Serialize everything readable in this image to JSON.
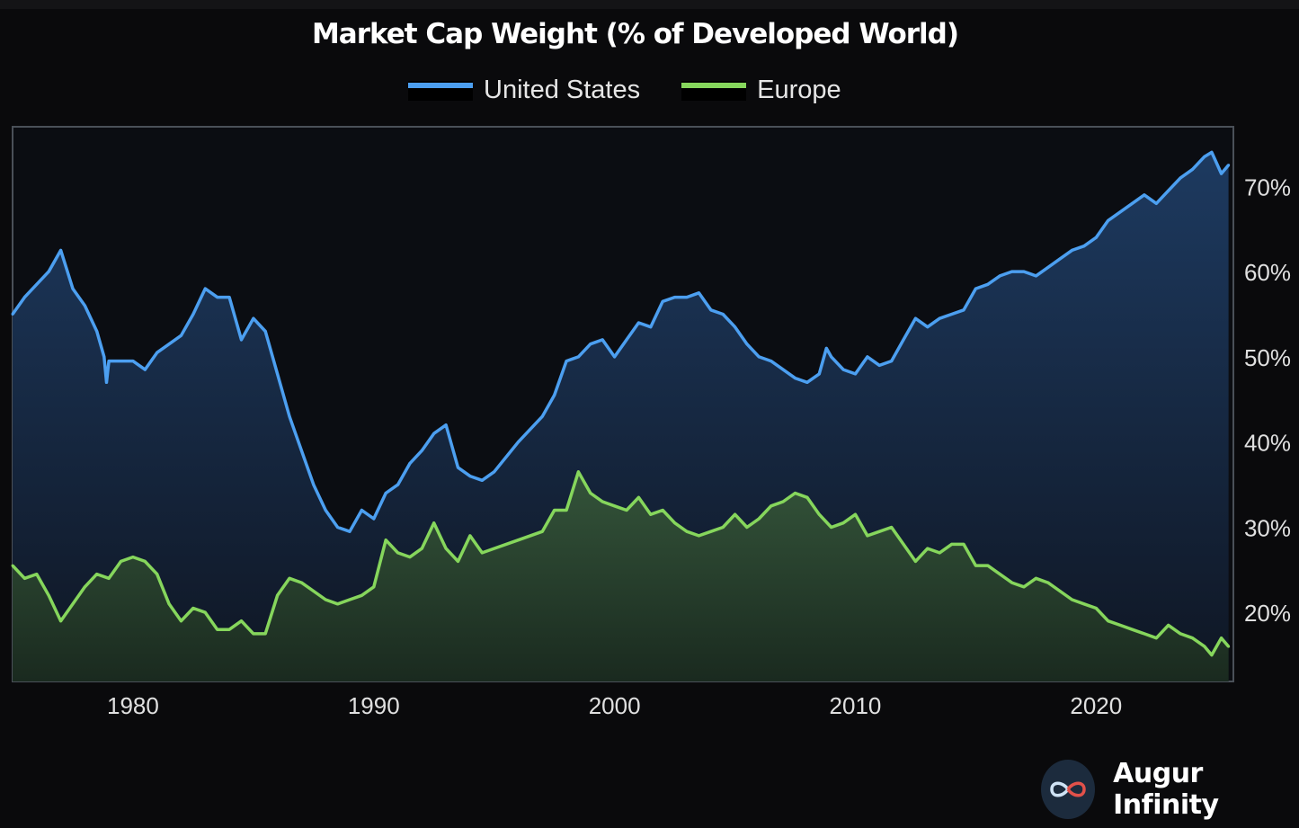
{
  "chart_data": {
    "type": "area",
    "title": "Market Cap Weight (% of Developed World)",
    "xlabel": "",
    "ylabel": "",
    "xlim": [
      1975,
      2025.7
    ],
    "ylim": [
      11.9,
      77
    ],
    "x_ticks": [
      "1980",
      "1990",
      "2000",
      "2010",
      "2020"
    ],
    "y_ticks": [
      "20%",
      "30%",
      "40%",
      "50%",
      "60%",
      "70%"
    ],
    "y_axis_side": "right",
    "grid": false,
    "legend_position": "top-center",
    "series": [
      {
        "name": "United States",
        "color": "#4c9ff0",
        "x": [
          1975,
          1975.5,
          1976.5,
          1977,
          1977.5,
          1978,
          1978.5,
          1978.8,
          1978.9,
          1979,
          1980,
          1980.5,
          1981,
          1982,
          1982.5,
          1983,
          1983.5,
          1984,
          1984.5,
          1985,
          1985.5,
          1986,
          1986.5,
          1987,
          1987.5,
          1988,
          1988.5,
          1989,
          1989.5,
          1990,
          1990.5,
          1991,
          1991.5,
          1992,
          1992.5,
          1993,
          1993.5,
          1994,
          1994.5,
          1995,
          1996,
          1997,
          1997.5,
          1998,
          1998.5,
          1999,
          1999.5,
          2000,
          2000.5,
          2001,
          2001.5,
          2002,
          2002.5,
          2003,
          2003.5,
          2004,
          2004.5,
          2005,
          2005.5,
          2006,
          2006.5,
          2007,
          2007.5,
          2008,
          2008.5,
          2008.8,
          2009,
          2009.5,
          2010,
          2010.5,
          2011,
          2011.5,
          2012,
          2012.5,
          2013,
          2013.5,
          2014,
          2014.5,
          2015,
          2015.5,
          2016,
          2016.5,
          2017,
          2017.5,
          2018,
          2018.5,
          2019,
          2019.5,
          2020,
          2020.5,
          2021,
          2021.5,
          2022,
          2022.5,
          2023,
          2023.5,
          2024,
          2024.5,
          2024.8,
          2025.2,
          2025.5
        ],
        "values": [
          55,
          57,
          60,
          62.5,
          58,
          56,
          53,
          50,
          47,
          49.5,
          49.5,
          48.5,
          50.5,
          52.5,
          55,
          58,
          57,
          57,
          52,
          54.5,
          53,
          48,
          43,
          39,
          35,
          32,
          30,
          29.5,
          32,
          31,
          34,
          35,
          37.5,
          39,
          41,
          42,
          37,
          36,
          35.5,
          36.5,
          40,
          43,
          45.5,
          49.5,
          50,
          51.5,
          52,
          50,
          52,
          54,
          53.5,
          56.5,
          57,
          57,
          57.5,
          55.5,
          55,
          53.5,
          51.5,
          50,
          49.5,
          48.5,
          47.5,
          47,
          48,
          51,
          50,
          48.5,
          48,
          50,
          49,
          49.5,
          52,
          54.5,
          53.5,
          54.5,
          55,
          55.5,
          58,
          58.5,
          59.5,
          60,
          60,
          59.5,
          60.5,
          61.5,
          62.5,
          63,
          64,
          66,
          67,
          68,
          69,
          68,
          69.5,
          71,
          72,
          73.5,
          74,
          71.5,
          72.5
        ]
      },
      {
        "name": "Europe",
        "color": "#86d65c",
        "x": [
          1975,
          1975.5,
          1976,
          1976.5,
          1977,
          1977.5,
          1978,
          1978.5,
          1979,
          1979.5,
          1980,
          1980.5,
          1981,
          1981.5,
          1982,
          1982.5,
          1983,
          1983.5,
          1984,
          1984.5,
          1985,
          1985.5,
          1986,
          1986.5,
          1987,
          1987.5,
          1988,
          1988.5,
          1989,
          1989.5,
          1990,
          1990.5,
          1991,
          1991.5,
          1992,
          1992.5,
          1993,
          1993.5,
          1994,
          1994.5,
          1995,
          1996,
          1997,
          1997.5,
          1998,
          1998.5,
          1999,
          1999.5,
          2000,
          2000.5,
          2001,
          2001.5,
          2002,
          2002.5,
          2003,
          2003.5,
          2004,
          2004.5,
          2005,
          2005.5,
          2006,
          2006.5,
          2007,
          2007.5,
          2008,
          2008.5,
          2009,
          2009.5,
          2010,
          2010.5,
          2011,
          2011.5,
          2012,
          2012.5,
          2013,
          2013.5,
          2014,
          2014.5,
          2015,
          2015.5,
          2016,
          2016.5,
          2017,
          2017.5,
          2018,
          2018.5,
          2019,
          2019.5,
          2020,
          2020.5,
          2021,
          2021.5,
          2022,
          2022.5,
          2023,
          2023.5,
          2024,
          2024.5,
          2024.8,
          2025.2,
          2025.5
        ],
        "values": [
          25.5,
          24,
          24.5,
          22,
          19,
          21,
          23,
          24.5,
          24,
          26,
          26.5,
          26,
          24.5,
          21,
          19,
          20.5,
          20,
          18,
          18,
          19,
          17.5,
          17.5,
          22,
          24,
          23.5,
          22.5,
          21.5,
          21,
          21.5,
          22,
          23,
          28.5,
          27,
          26.5,
          27.5,
          30.5,
          27.5,
          26,
          29,
          27,
          27.5,
          28.5,
          29.5,
          32,
          32,
          36.5,
          34,
          33,
          32.5,
          32,
          33.5,
          31.5,
          32,
          30.5,
          29.5,
          29,
          29.5,
          30,
          31.5,
          30,
          31,
          32.5,
          33,
          34,
          33.5,
          31.5,
          30,
          30.5,
          31.5,
          29,
          29.5,
          30,
          28,
          26,
          27.5,
          27,
          28,
          28,
          25.5,
          25.5,
          24.5,
          23.5,
          23,
          24,
          23.5,
          22.5,
          21.5,
          21,
          20.5,
          19,
          18.5,
          18,
          17.5,
          17,
          18.5,
          17.5,
          17,
          16,
          15,
          17,
          16
        ]
      }
    ]
  },
  "branding": {
    "name": "Augur Infinity",
    "icon": "infinity-icon"
  },
  "colors": {
    "background": "#0a0a0c",
    "us": "#4c9ff0",
    "europe": "#86d65c"
  }
}
